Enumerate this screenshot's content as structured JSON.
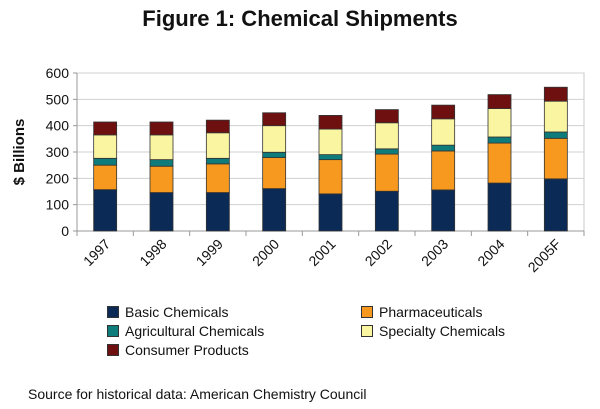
{
  "chart_data": {
    "type": "bar",
    "stacked": true,
    "title": "Figure 1: Chemical Shipments",
    "xlabel": "",
    "ylabel": "$ Billions",
    "ylim": [
      0,
      600
    ],
    "yticks": [
      0,
      100,
      200,
      300,
      400,
      500,
      600
    ],
    "grid": true,
    "categories": [
      "1997",
      "1998",
      "1999",
      "2000",
      "2001",
      "2002",
      "2003",
      "2004",
      "2005F"
    ],
    "series": [
      {
        "name": "Basic Chemicals",
        "color": "#0b2a55",
        "values": [
          157,
          146,
          146,
          161,
          141,
          151,
          156,
          182,
          198
        ]
      },
      {
        "name": "Pharmaceuticals",
        "color": "#f7991e",
        "values": [
          93,
          100,
          109,
          118,
          130,
          141,
          148,
          152,
          154
        ]
      },
      {
        "name": "Agricultural Chemicals",
        "color": "#0f7c7c",
        "values": [
          26,
          25,
          21,
          20,
          19,
          20,
          22,
          23,
          24
        ]
      },
      {
        "name": "Specialty Chemicals",
        "color": "#faf5a0",
        "values": [
          89,
          94,
          97,
          101,
          97,
          99,
          100,
          108,
          117
        ]
      },
      {
        "name": "Consumer Products",
        "color": "#6e1010",
        "values": [
          49,
          49,
          48,
          49,
          52,
          50,
          52,
          53,
          53
        ]
      }
    ],
    "legend_position": "bottom"
  },
  "source_note": "Source for historical data: American Chemistry Council"
}
